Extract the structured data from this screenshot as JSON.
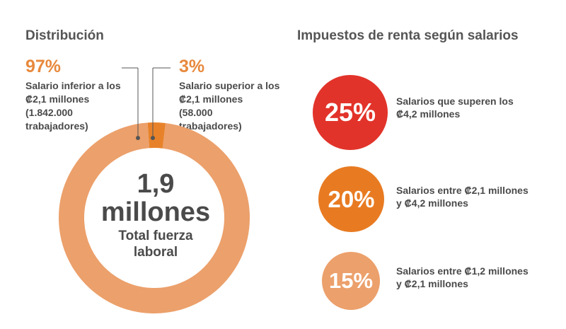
{
  "colors": {
    "donut_main": "#eca06b",
    "donut_small": "#e8822a",
    "tax_25": "#e2332a",
    "tax_20": "#e87b22",
    "tax_15": "#eca06b",
    "accent_text": "#e8893d"
  },
  "titles": {
    "distribution": "Distribución",
    "taxes": "Impuestos de renta según salarios"
  },
  "chart_data": [
    {
      "type": "pie",
      "title": "Distribución",
      "center_value_lines": [
        "1,9",
        "millones"
      ],
      "center_caption_lines": [
        "Total fuerza",
        "laboral"
      ],
      "series": [
        {
          "name": "Salario inferior",
          "value": 97,
          "value_label": "97%",
          "description_lines": [
            "Salario inferior a los",
            "₡2,1 millones",
            "(1.842.000",
            "trabajadores)"
          ]
        },
        {
          "name": "Salario superior",
          "value": 3,
          "value_label": "3%",
          "description_lines": [
            "Salario superior a los",
            "₡2,1 millones",
            "(58.000",
            "trabajadores)"
          ]
        }
      ]
    },
    {
      "type": "table",
      "title": "Impuestos de renta según salarios",
      "rows": [
        {
          "rate": 25,
          "rate_label": "25%",
          "description_lines": [
            "Salarios que superen los",
            "₡4,2 millones"
          ]
        },
        {
          "rate": 20,
          "rate_label": "20%",
          "description_lines": [
            "Salarios entre ₡2,1 millones",
            "y ₡4,2 millones"
          ]
        },
        {
          "rate": 15,
          "rate_label": "15%",
          "description_lines": [
            "Salarios entre ₡1,2 millones",
            "y ₡2,1 millones"
          ]
        }
      ]
    }
  ]
}
